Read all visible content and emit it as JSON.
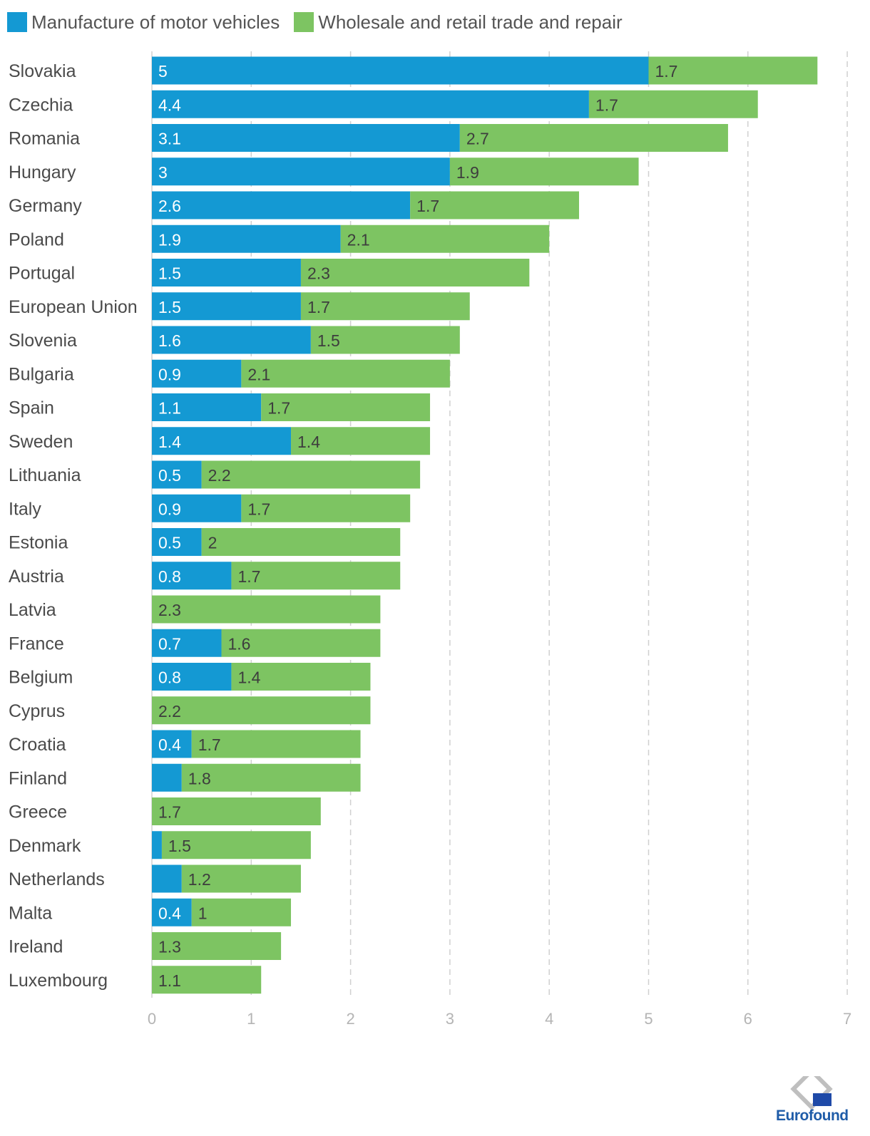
{
  "chart_data": {
    "type": "bar",
    "orientation": "horizontal",
    "stacked": true,
    "categories": [
      "Slovakia",
      "Czechia",
      "Romania",
      "Hungary",
      "Germany",
      "Poland",
      "Portugal",
      "European Union",
      "Slovenia",
      "Bulgaria",
      "Spain",
      "Sweden",
      "Lithuania",
      "Italy",
      "Estonia",
      "Austria",
      "Latvia",
      "France",
      "Belgium",
      "Cyprus",
      "Croatia",
      "Finland",
      "Greece",
      "Denmark",
      "Netherlands",
      "Malta",
      "Ireland",
      "Luxembourg"
    ],
    "series": [
      {
        "name": "Manufacture of motor vehicles",
        "color": "#1499d3",
        "values": [
          5,
          4.4,
          3.1,
          3,
          2.6,
          1.9,
          1.5,
          1.5,
          1.6,
          0.9,
          1.1,
          1.4,
          0.5,
          0.9,
          0.5,
          0.8,
          0,
          0.7,
          0.8,
          0,
          0.4,
          0.3,
          0,
          0.1,
          0.3,
          0.4,
          0,
          0
        ],
        "labels": [
          "5",
          "4.4",
          "3.1",
          "3",
          "2.6",
          "1.9",
          "1.5",
          "1.5",
          "1.6",
          "0.9",
          "1.1",
          "1.4",
          "0.5",
          "0.9",
          "0.5",
          "0.8",
          "",
          "0.7",
          "0.8",
          "",
          "0.4",
          "",
          "",
          "",
          "",
          "0.4",
          "",
          ""
        ]
      },
      {
        "name": "Wholesale and retail trade and repair",
        "color": "#7dc462",
        "values": [
          1.7,
          1.7,
          2.7,
          1.9,
          1.7,
          2.1,
          2.3,
          1.7,
          1.5,
          2.1,
          1.7,
          1.4,
          2.2,
          1.7,
          2,
          1.7,
          2.3,
          1.6,
          1.4,
          2.2,
          1.7,
          1.8,
          1.7,
          1.5,
          1.2,
          1,
          1.3,
          1.1
        ],
        "labels": [
          "1.7",
          "1.7",
          "2.7",
          "1.9",
          "1.7",
          "2.1",
          "2.3",
          "1.7",
          "1.5",
          "2.1",
          "1.7",
          "1.4",
          "2.2",
          "1.7",
          "2",
          "1.7",
          "2.3",
          "1.6",
          "1.4",
          "2.2",
          "1.7",
          "1.8",
          "1.7",
          "1.5",
          "1.2",
          "1",
          "1.3",
          "1.1"
        ]
      }
    ],
    "xlim": [
      0,
      7
    ],
    "xticks": [
      "0",
      "1",
      "2",
      "3",
      "4",
      "5",
      "6",
      "7"
    ],
    "grid": "vertical dashed",
    "legend": "top-left",
    "xlabel": "",
    "ylabel": ""
  },
  "logo": {
    "text": "Eurofound"
  }
}
